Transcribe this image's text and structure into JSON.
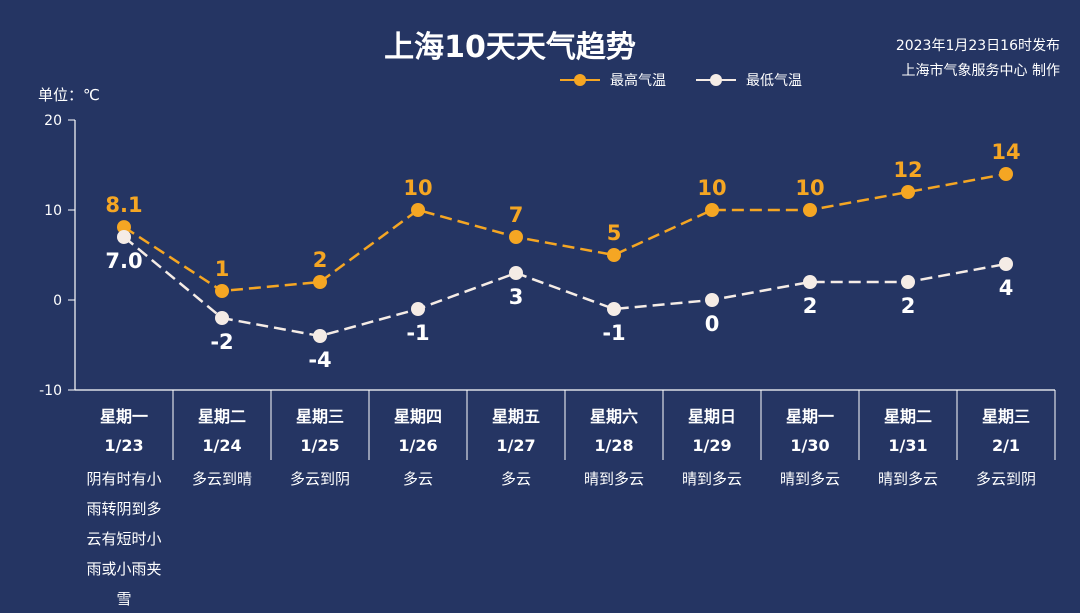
{
  "header": {
    "title": "上海10天天气趋势",
    "published": "2023年1月23日16时发布",
    "source": "上海市气象服务中心 制作",
    "unit": "单位：℃"
  },
  "chart_data": {
    "type": "line",
    "title": "上海10天天气趋势",
    "ylabel": "单位：℃",
    "ylim": [
      -10,
      20
    ],
    "yticks": [
      20,
      10,
      0,
      -10
    ],
    "categories": [
      "星期一",
      "星期二",
      "星期三",
      "星期四",
      "星期五",
      "星期六",
      "星期日",
      "星期一",
      "星期二",
      "星期三"
    ],
    "dates": [
      "1/23",
      "1/24",
      "1/25",
      "1/26",
      "1/27",
      "1/28",
      "1/29",
      "1/30",
      "1/31",
      "2/1"
    ],
    "weather": [
      "阴有时有小雨转阴到多云有短时小雨或小雨夹雪",
      "多云到晴",
      "多云到阴",
      "多云",
      "多云",
      "晴到多云",
      "晴到多云",
      "晴到多云",
      "晴到多云",
      "多云到阴"
    ],
    "series": [
      {
        "name": "最高气温",
        "color": "#f5a623",
        "values": [
          8.1,
          1,
          2,
          10,
          7,
          5,
          10,
          10,
          12,
          14
        ],
        "labels": [
          "8.1",
          "1",
          "2",
          "10",
          "7",
          "5",
          "10",
          "10",
          "12",
          "14"
        ]
      },
      {
        "name": "最低气温",
        "color": "#f5ece6",
        "values": [
          7.0,
          -2,
          -4,
          -1,
          3,
          -1,
          0,
          2,
          2,
          4
        ],
        "labels": [
          "7.0",
          "-2",
          "-4",
          "-1",
          "3",
          "-1",
          "0",
          "2",
          "2",
          "4"
        ]
      }
    ],
    "legend": "top-center"
  }
}
